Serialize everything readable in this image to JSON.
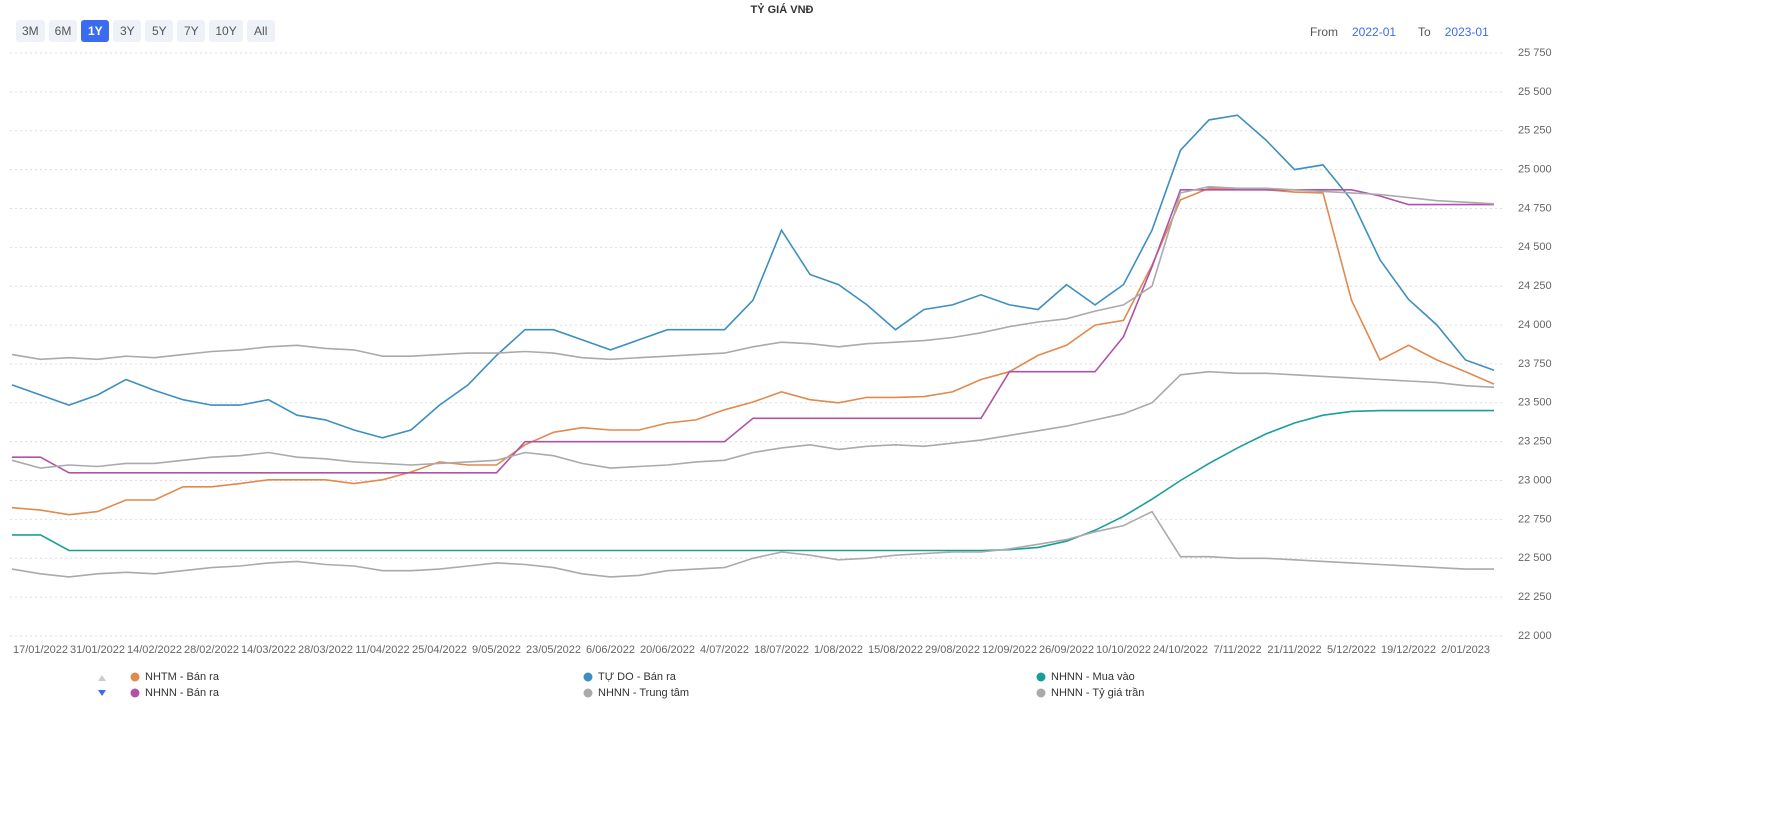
{
  "title": "TỶ GIÁ VNĐ",
  "range_buttons": [
    "3M",
    "6M",
    "1Y",
    "3Y",
    "5Y",
    "7Y",
    "10Y",
    "All"
  ],
  "range": {
    "from_label": "From",
    "from": "2022-01",
    "to_label": "To",
    "to": "2023-01"
  },
  "chart_data": {
    "type": "line",
    "grid": true,
    "categories": [
      null,
      "17/01/2022",
      null,
      "31/01/2022",
      null,
      "14/02/2022",
      null,
      "28/02/2022",
      null,
      "14/03/2022",
      null,
      "28/03/2022",
      null,
      "11/04/2022",
      null,
      "25/04/2022",
      null,
      "9/05/2022",
      null,
      "23/05/2022",
      null,
      "6/06/2022",
      null,
      "20/06/2022",
      null,
      "4/07/2022",
      null,
      "18/07/2022",
      null,
      "1/08/2022",
      null,
      "15/08/2022",
      null,
      "29/08/2022",
      null,
      "12/09/2022",
      null,
      "26/09/2022",
      null,
      "10/10/2022",
      null,
      "24/10/2022",
      null,
      "7/11/2022",
      null,
      "21/11/2022",
      null,
      "5/12/2022",
      null,
      "19/12/2022",
      null,
      "2/01/2023",
      null
    ],
    "ylim": [
      22000,
      25750
    ],
    "yticks": [
      {
        "value": 22000,
        "label": "22 000"
      },
      {
        "value": 22250,
        "label": "22 250"
      },
      {
        "value": 22500,
        "label": "22 500"
      },
      {
        "value": 22750,
        "label": "22 750"
      },
      {
        "value": 23000,
        "label": "23 000"
      },
      {
        "value": 23250,
        "label": "23 250"
      },
      {
        "value": 23500,
        "label": "23 500"
      },
      {
        "value": 23750,
        "label": "23 750"
      },
      {
        "value": 24000,
        "label": "24 000"
      },
      {
        "value": 24250,
        "label": "24 250"
      },
      {
        "value": 24500,
        "label": "24 500"
      },
      {
        "value": 24750,
        "label": "24 750"
      },
      {
        "value": 25000,
        "label": "25 000"
      },
      {
        "value": 25250,
        "label": "25 250"
      },
      {
        "value": 25500,
        "label": "25 500"
      },
      {
        "value": 25750,
        "label": "25 750"
      }
    ],
    "series": [
      {
        "name": "NHTM - Bán ra",
        "color": "#e08a4e",
        "values": [
          22825,
          22810,
          22780,
          22800,
          22875,
          22875,
          22960,
          22960,
          22980,
          23005,
          23005,
          23005,
          22980,
          23005,
          23055,
          23120,
          23100,
          23100,
          23230,
          23310,
          23340,
          23325,
          23325,
          23370,
          23390,
          23455,
          23505,
          23570,
          23520,
          23500,
          23535,
          23535,
          23540,
          23570,
          23650,
          23700,
          23805,
          23870,
          24000,
          24030,
          24385,
          24805,
          24880,
          24880,
          24870,
          24855,
          24850,
          24160,
          23775,
          23870,
          23775,
          23700,
          23620
        ]
      },
      {
        "name": "TỰ DO - Bán ra",
        "color": "#3d8fc0",
        "values": [
          23615,
          23550,
          23485,
          23550,
          23650,
          23580,
          23520,
          23485,
          23485,
          23520,
          23420,
          23390,
          23325,
          23275,
          23325,
          23485,
          23615,
          23805,
          23970,
          23970,
          23905,
          23840,
          23905,
          23970,
          23970,
          23970,
          24160,
          24610,
          24325,
          24260,
          24130,
          23970,
          24100,
          24130,
          24195,
          24130,
          24100,
          24260,
          24130,
          24260,
          24610,
          25125,
          25320,
          25350,
          25190,
          25000,
          25030,
          24805,
          24420,
          24165,
          24000,
          23775,
          23710
        ]
      },
      {
        "name": "NHNN - Mua vào",
        "color": "#1a9e9a",
        "values": [
          22650,
          22650,
          22550,
          22550,
          22550,
          22550,
          22550,
          22550,
          22550,
          22550,
          22550,
          22550,
          22550,
          22550,
          22550,
          22550,
          22550,
          22550,
          22550,
          22550,
          22550,
          22550,
          22550,
          22550,
          22550,
          22550,
          22550,
          22550,
          22550,
          22550,
          22550,
          22550,
          22550,
          22550,
          22550,
          22555,
          22570,
          22610,
          22680,
          22770,
          22880,
          23000,
          23110,
          23210,
          23300,
          23370,
          23420,
          23445,
          23450,
          23450,
          23450,
          23450,
          23450
        ]
      },
      {
        "name": "NHNN - Bán ra",
        "color": "#b052a8",
        "values": [
          23150,
          23150,
          23050,
          23050,
          23050,
          23050,
          23050,
          23050,
          23050,
          23050,
          23050,
          23050,
          23050,
          23050,
          23050,
          23050,
          23050,
          23050,
          23250,
          23250,
          23250,
          23250,
          23250,
          23250,
          23250,
          23250,
          23400,
          23400,
          23400,
          23400,
          23400,
          23400,
          23400,
          23400,
          23400,
          23700,
          23700,
          23700,
          23700,
          23925,
          24375,
          24870,
          24870,
          24870,
          24870,
          24870,
          24870,
          24870,
          24830,
          24775,
          24775,
          24775,
          24775
        ]
      },
      {
        "name": "NHNN - Trung tâm",
        "color": "#aaaaaa",
        "values": [
          23130,
          23080,
          23100,
          23090,
          23110,
          23110,
          23130,
          23150,
          23160,
          23180,
          23150,
          23140,
          23120,
          23110,
          23100,
          23110,
          23120,
          23130,
          23180,
          23160,
          23110,
          23080,
          23090,
          23100,
          23120,
          23130,
          23180,
          23210,
          23230,
          23200,
          23220,
          23230,
          23220,
          23240,
          23260,
          23290,
          23320,
          23350,
          23390,
          23430,
          23500,
          23680,
          23700,
          23690,
          23690,
          23680,
          23670,
          23660,
          23650,
          23640,
          23630,
          23610,
          23600
        ]
      },
      {
        "name": "NHNN - Tỷ giá trần",
        "color": "#aaaaaa",
        "values": [
          23810,
          23780,
          23790,
          23780,
          23800,
          23790,
          23810,
          23830,
          23840,
          23860,
          23870,
          23850,
          23840,
          23800,
          23800,
          23810,
          23820,
          23820,
          23830,
          23820,
          23790,
          23780,
          23790,
          23800,
          23810,
          23820,
          23860,
          23890,
          23880,
          23860,
          23880,
          23890,
          23900,
          23920,
          23950,
          23990,
          24020,
          24040,
          24090,
          24130,
          24250,
          24850,
          24890,
          24880,
          24880,
          24870,
          24860,
          24850,
          24840,
          24820,
          24800,
          24790,
          24780
        ]
      },
      {
        "color": "#aaaaaa",
        "values": [
          22430,
          22400,
          22380,
          22400,
          22410,
          22400,
          22420,
          22440,
          22450,
          22470,
          22480,
          22460,
          22450,
          22420,
          22420,
          22430,
          22450,
          22470,
          22460,
          22440,
          22400,
          22380,
          22390,
          22420,
          22430,
          22440,
          22500,
          22540,
          22520,
          22490,
          22500,
          22520,
          22530,
          22540,
          22540,
          22560,
          22590,
          22620,
          22670,
          22710,
          22800,
          22510,
          22510,
          22500,
          22500,
          22490,
          22480,
          22470,
          22460,
          22450,
          22440,
          22430,
          22430
        ]
      }
    ]
  }
}
